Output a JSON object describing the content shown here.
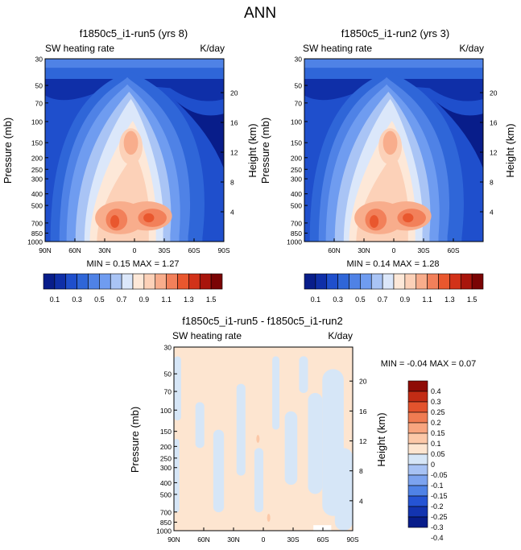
{
  "suptitle": "ANN",
  "colors": {
    "abs": [
      "#081d8a",
      "#0f2fa8",
      "#1f4fcc",
      "#2f66d8",
      "#4f82e6",
      "#6f9cf0",
      "#a9c4f5",
      "#dbe7fa",
      "#fde8d8",
      "#fcd1b8",
      "#f8ad8c",
      "#f2805a",
      "#e9572e",
      "#d23219",
      "#a8150c",
      "#7a0404"
    ],
    "diff": [
      "#081d8a",
      "#1334b0",
      "#2554d4",
      "#4f82e6",
      "#7ca3ef",
      "#a7c2f4",
      "#d6e6f7",
      "#fde5d0",
      "#fcc8a8",
      "#f8a57f",
      "#f07c52",
      "#e3532d",
      "#c22c15",
      "#8f0c06"
    ]
  },
  "chart_data": [
    {
      "type": "heatmap",
      "title": "f1850c5_i1-run5 (yrs 8)",
      "left_label": "SW heating rate",
      "right_label": "K/day",
      "ylabel": "Pressure (mb)",
      "ylabel_right": "Height (km)",
      "x_ticks": [
        "90N",
        "60N",
        "30N",
        "0",
        "30S",
        "60S",
        "90S"
      ],
      "y_ticks": [
        "30",
        "50",
        "70",
        "100",
        "150",
        "200",
        "250",
        "300",
        "400",
        "500",
        "700",
        "850",
        "1000"
      ],
      "z_ticks": [
        "20",
        "16",
        "12",
        "8",
        "4"
      ],
      "min_max": "MIN =  0.15  MAX =  1.27",
      "colorbar": {
        "levels": [
          "0.1",
          "0.3",
          "0.5",
          "0.7",
          "0.9",
          "1.1",
          "1.3",
          "1.5"
        ],
        "min": 0.0,
        "max": 1.6
      }
    },
    {
      "type": "heatmap",
      "title": "f1850c5_i1-run2 (yrs 3)",
      "left_label": "SW heating rate",
      "right_label": "K/day",
      "ylabel": "Pressure (mb)",
      "ylabel_right": "Height (km)",
      "x_ticks": [
        "60N",
        "30N",
        "0",
        "30S",
        "60S"
      ],
      "y_ticks": [
        "30",
        "50",
        "70",
        "100",
        "150",
        "200",
        "250",
        "300",
        "400",
        "500",
        "700",
        "850",
        "1000"
      ],
      "z_ticks": [
        "20",
        "16",
        "12",
        "8",
        "4"
      ],
      "min_max": "MIN =  0.14  MAX =  1.28",
      "colorbar": {
        "levels": [
          "0.1",
          "0.3",
          "0.5",
          "0.7",
          "0.9",
          "1.1",
          "1.3",
          "1.5"
        ],
        "min": 0.0,
        "max": 1.6
      }
    },
    {
      "type": "heatmap",
      "title": "f1850c5_i1-run5 - f1850c5_i1-run2",
      "left_label": "SW heating rate",
      "right_label": "K/day",
      "ylabel": "Pressure (mb)",
      "ylabel_right": "Height (km)",
      "x_ticks": [
        "90N",
        "60N",
        "30N",
        "0",
        "30S",
        "60S",
        "90S"
      ],
      "y_ticks": [
        "30",
        "50",
        "70",
        "100",
        "150",
        "200",
        "250",
        "300",
        "400",
        "500",
        "700",
        "850",
        "1000"
      ],
      "z_ticks": [
        "20",
        "16",
        "12",
        "8",
        "4"
      ],
      "min_max": "MIN =  -0.04  MAX =  0.07",
      "colorbar": {
        "levels": [
          "0.4",
          "0.3",
          "0.25",
          "0.2",
          "0.15",
          "0.1",
          "0.05",
          "0",
          "-0.05",
          "-0.1",
          "-0.15",
          "-0.2",
          "-0.25",
          "-0.3",
          "-0.4"
        ]
      }
    }
  ]
}
